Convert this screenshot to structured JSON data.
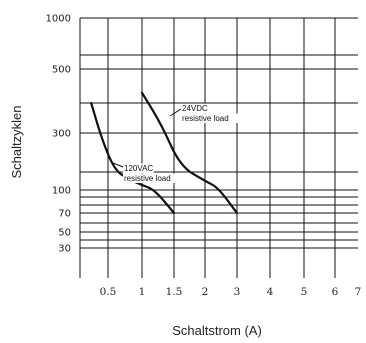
{
  "chart_data": {
    "type": "line",
    "xlabel": "Schaltstrom (A)",
    "ylabel": "Schaltzyklen",
    "x_ticks": [
      {
        "label": "0.5",
        "value": 0.5
      },
      {
        "label": "1",
        "value": 1
      },
      {
        "label": "1.5",
        "value": 1.5
      },
      {
        "label": "2",
        "value": 2
      },
      {
        "label": "3",
        "value": 3
      },
      {
        "label": "4",
        "value": 4
      },
      {
        "label": "5",
        "value": 5
      },
      {
        "label": "6",
        "value": 6
      },
      {
        "label": "7",
        "value": 7
      }
    ],
    "y_ticks": [
      {
        "label": "1000",
        "value": 1000
      },
      {
        "label": "500",
        "value": 500
      },
      {
        "label": "300",
        "value": 300
      },
      {
        "label": "100",
        "value": 100
      },
      {
        "label": "70",
        "value": 70
      },
      {
        "label": "50",
        "value": 50
      },
      {
        "label": "30",
        "value": 30
      }
    ],
    "y_gridlines": [
      1000,
      600,
      500,
      400,
      300,
      200,
      100,
      90,
      80,
      70,
      60,
      50,
      40,
      30
    ],
    "grid": true,
    "series": [
      {
        "annotation": [
          "120VAC",
          "resistive load"
        ],
        "points": [
          [
            0.2,
            400
          ],
          [
            0.4,
            280
          ],
          [
            0.6,
            205
          ],
          [
            0.8,
            160
          ],
          [
            1.0,
            128
          ],
          [
            1.2,
            100
          ],
          [
            1.5,
            70
          ]
        ]
      },
      {
        "annotation": [
          "24VDC",
          "resistive load"
        ],
        "points": [
          [
            1.0,
            430
          ],
          [
            1.3,
            330
          ],
          [
            1.6,
            215
          ],
          [
            2.0,
            150
          ],
          [
            2.4,
            115
          ],
          [
            3.0,
            70
          ]
        ]
      }
    ]
  }
}
